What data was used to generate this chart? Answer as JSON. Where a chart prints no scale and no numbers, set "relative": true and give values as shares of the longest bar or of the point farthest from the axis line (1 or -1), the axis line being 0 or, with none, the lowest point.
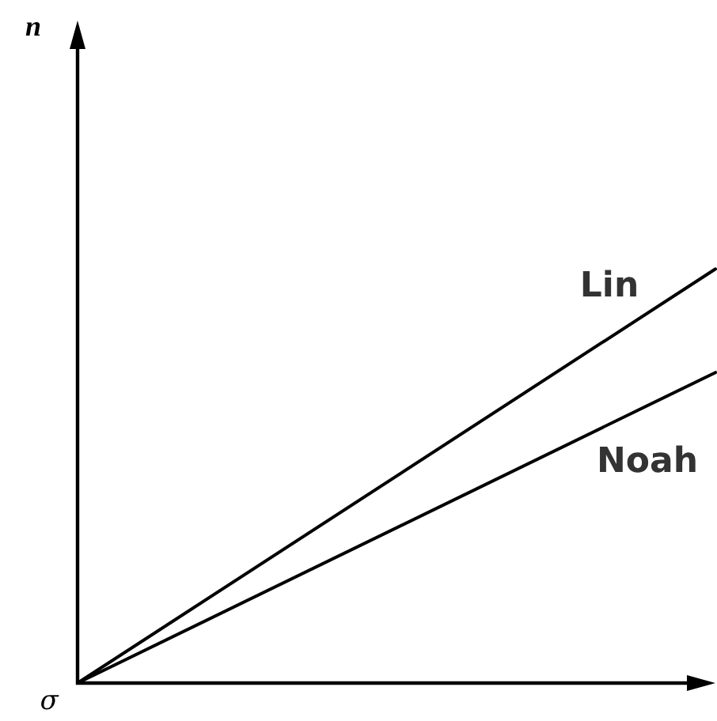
{
  "chart_data": {
    "type": "line",
    "relative": true,
    "annotations": [
      "n",
      "σ"
    ],
    "categories": [
      null,
      null
    ],
    "series": [
      {
        "name": "Lin",
        "color": "#000000",
        "values": [
          0,
          1
        ]
      },
      {
        "name": "Noah",
        "color": "#000000",
        "values": [
          0,
          0.75
        ]
      }
    ],
    "legend": false,
    "marker": "none",
    "line_style": "solid"
  }
}
